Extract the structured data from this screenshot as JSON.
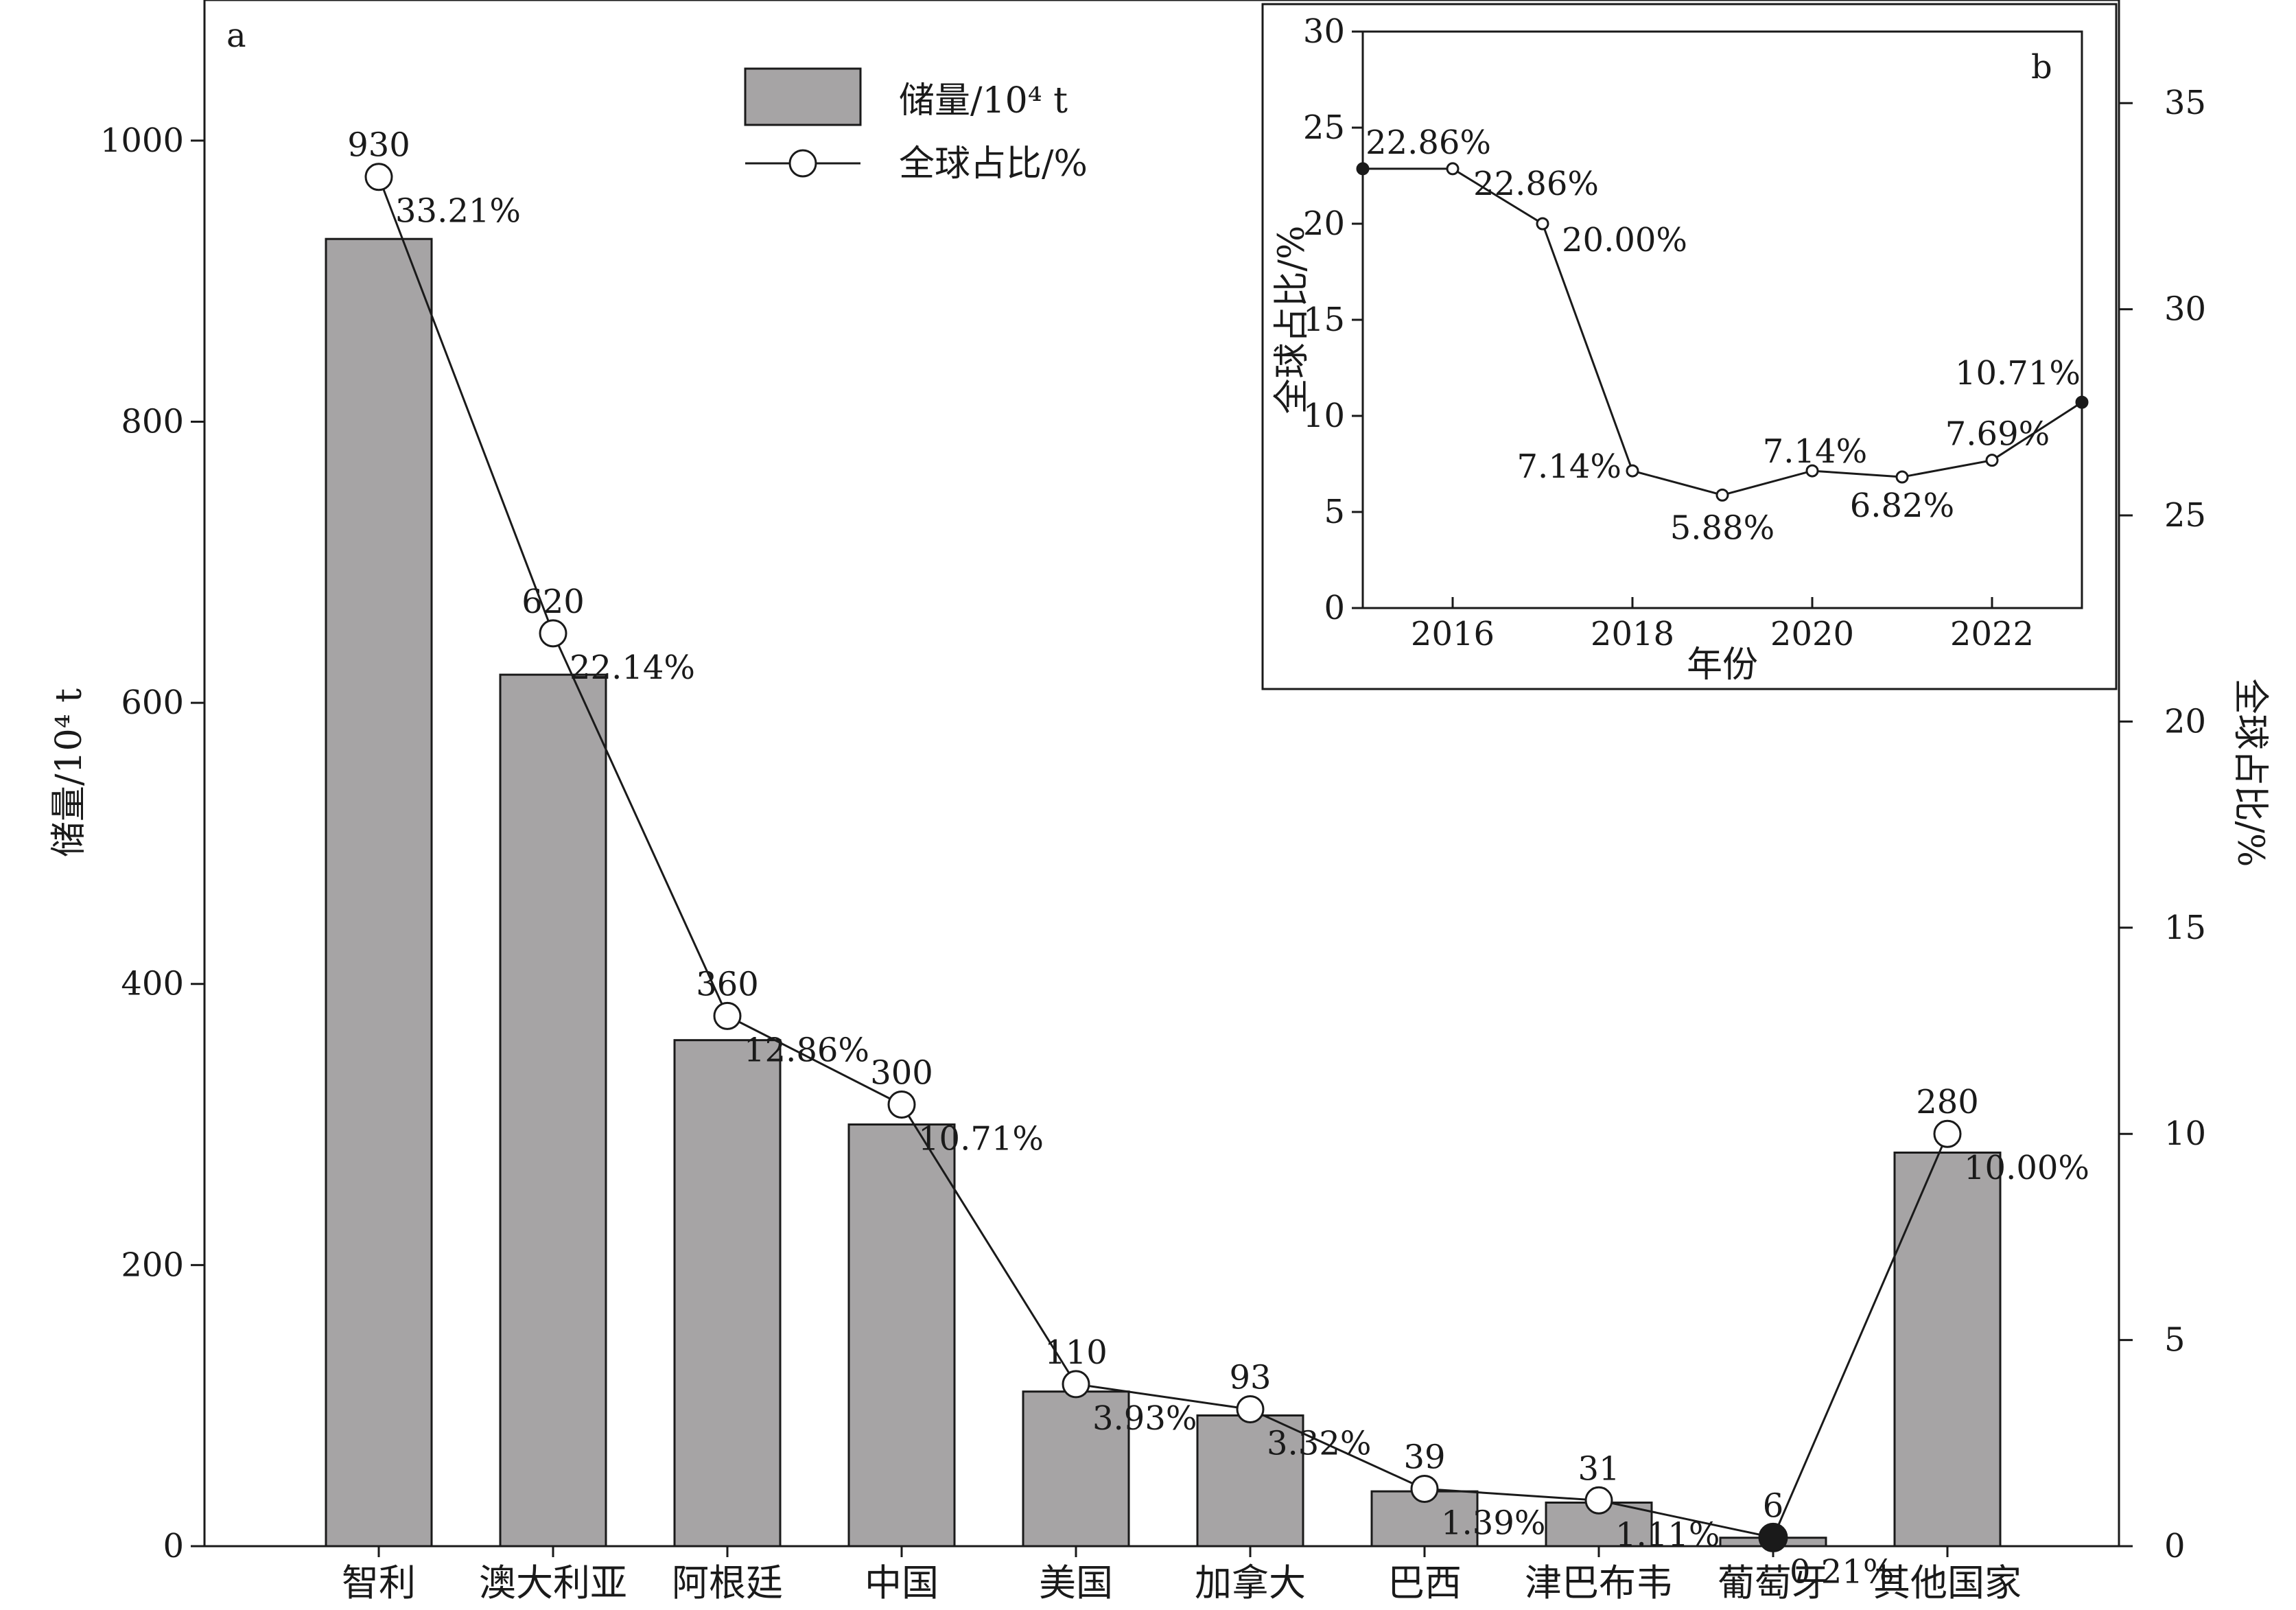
{
  "chart_data": [
    {
      "panel": "a",
      "type": "bar",
      "categories": [
        "智利",
        "澳大利亚",
        "阿根廷",
        "中国",
        "美国",
        "加拿大",
        "巴西",
        "津巴布韦",
        "葡萄牙",
        "其他国家"
      ],
      "series": [
        {
          "name": "储量/10⁴ t",
          "type": "bar",
          "axis": "left",
          "values": [
            930,
            620,
            360,
            300,
            110,
            93,
            39,
            31,
            6,
            280
          ],
          "labels": [
            "930",
            "620",
            "360",
            "300",
            "110",
            "93",
            "39",
            "31",
            "6",
            "280"
          ],
          "color": "#a6a4a5"
        },
        {
          "name": "全球占比/%",
          "type": "line",
          "axis": "right",
          "values": [
            33.21,
            22.14,
            12.86,
            10.71,
            3.93,
            3.32,
            1.39,
            1.11,
            0.21,
            10.0
          ],
          "labels": [
            "33.21%",
            "22.14%",
            "12.86%",
            "10.71%",
            "3.93%",
            "3.32%",
            "1.39%",
            "1.11%",
            "0.21%",
            "10.00%"
          ],
          "color": "#1a1a1a"
        }
      ],
      "ylabel": "储量/10⁴ t",
      "y2label": "全球占比/%",
      "ylim": [
        0,
        1100
      ],
      "y2lim": [
        0,
        37.5
      ],
      "yticks": [
        0,
        200,
        400,
        600,
        800,
        1000
      ],
      "y2ticks": [
        0,
        5,
        10,
        15,
        20,
        25,
        30,
        35
      ],
      "legend": "top-center",
      "grid": false
    },
    {
      "panel": "b",
      "type": "line",
      "x": [
        2015,
        2016,
        2017,
        2018,
        2019,
        2020,
        2021,
        2022,
        2023
      ],
      "series": [
        {
          "values": [
            22.86,
            22.86,
            20.0,
            7.14,
            5.88,
            7.14,
            6.82,
            7.69,
            10.71
          ],
          "labels": [
            "22.86%",
            "22.86%",
            "20.00%",
            "7.14%",
            "5.88%",
            "7.14%",
            "6.82%",
            "7.69%",
            "10.71%"
          ]
        }
      ],
      "xlabel": "年份",
      "ylabel": "全球占比/%",
      "xlim": [
        2015,
        2023
      ],
      "ylim": [
        0,
        30
      ],
      "xticks": [
        2016,
        2018,
        2020,
        2022
      ],
      "yticks": [
        0,
        5,
        10,
        15,
        20,
        25,
        30
      ],
      "grid": false
    }
  ],
  "colors": {
    "bar_fill": "#a6a4a5",
    "line": "#1a1a1a",
    "axis": "#1a1a1a"
  }
}
